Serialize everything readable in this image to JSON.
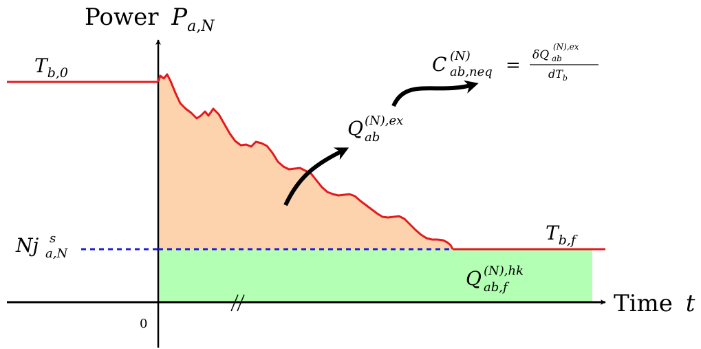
{
  "y_axis": {
    "word": "Power",
    "symbol": "P",
    "sub": "a,N"
  },
  "x_axis": {
    "word": "Time",
    "symbol": "t"
  },
  "origin_label": "0",
  "colors": {
    "curve": "#e31a1c",
    "dashed": "#1f1fd6",
    "excess_fill": "#fdd3ad",
    "hk_fill": "#b3ffb3",
    "axis": "#000000"
  },
  "labels": {
    "T_initial": {
      "main": "T",
      "sub": "b,0"
    },
    "T_final": {
      "main": "T",
      "sub": "b,f"
    },
    "steady_power": {
      "prefix": "N",
      "main": "j",
      "sup": "s",
      "sub": "a,N"
    },
    "Q_ex": {
      "main": "Q",
      "sup": "(N),ex",
      "sub": "ab"
    },
    "Q_hk": {
      "main": "Q",
      "sup": "(N),hk",
      "sub": "ab,f"
    },
    "C_neq": {
      "main": "C",
      "sup": "(N)",
      "sub": "ab,neq",
      "equals": "=",
      "num_delta": "δ",
      "num_main": "Q",
      "num_sup": "(N),ex",
      "num_sub": "ab",
      "den_d": "d",
      "den_main": "T",
      "den_sub": "b"
    }
  }
}
